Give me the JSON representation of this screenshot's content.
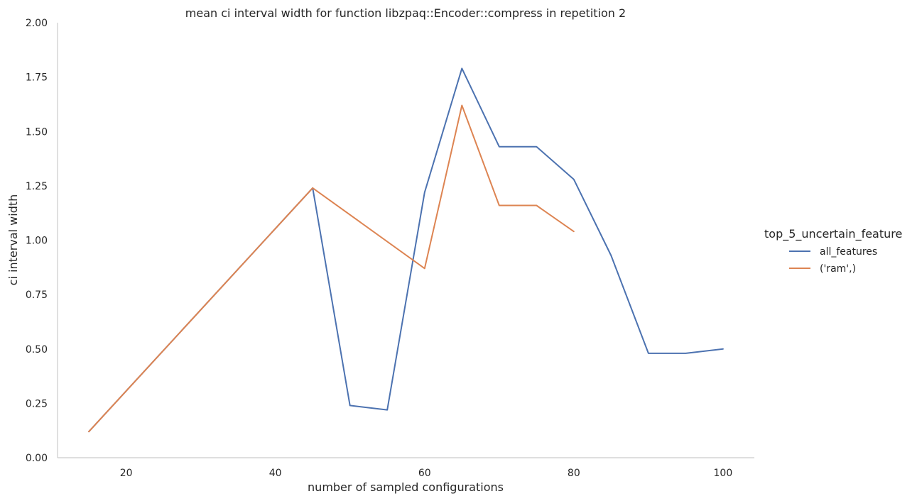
{
  "chart_data": {
    "type": "line",
    "title": "mean ci interval width for function libzpaq::Encoder::compress in repetition 2",
    "xlabel": "number of sampled configurations",
    "ylabel": "ci interval width",
    "xlim": [
      10.8,
      104.2
    ],
    "ylim": [
      0,
      2.0
    ],
    "xticks": [
      "20",
      "40",
      "60",
      "80",
      "100"
    ],
    "yticks": [
      "0.00",
      "0.25",
      "0.50",
      "0.75",
      "1.00",
      "1.25",
      "1.50",
      "1.75",
      "2.00"
    ],
    "grid": false,
    "legend": {
      "title": "top_5_uncertain_feature",
      "placement": "right"
    },
    "series": [
      {
        "name": "all_features",
        "color": "#4c72b0",
        "x": [
          15,
          45,
          50,
          55,
          60,
          65,
          70,
          75,
          80,
          85,
          90,
          95,
          100
        ],
        "values": [
          0.12,
          1.24,
          0.24,
          0.22,
          1.22,
          1.79,
          1.43,
          1.43,
          1.28,
          0.93,
          0.48,
          0.48,
          0.5
        ]
      },
      {
        "name": "('ram',)",
        "color": "#dd8452",
        "x": [
          15,
          45,
          60,
          65,
          70,
          75,
          80
        ],
        "values": [
          0.12,
          1.24,
          0.87,
          1.62,
          1.16,
          1.16,
          1.04
        ]
      }
    ]
  }
}
